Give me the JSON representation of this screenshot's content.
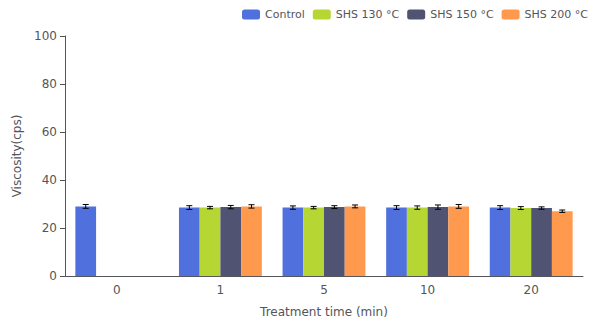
{
  "chart_data": {
    "type": "bar",
    "xlabel": "Treatment time (min)",
    "ylabel": "Viscosity(cps)",
    "categories": [
      "0",
      "1",
      "5",
      "10",
      "20"
    ],
    "series": [
      {
        "name": "Control",
        "values": [
          29.0,
          28.5,
          28.5,
          28.5,
          28.5
        ],
        "errors": [
          0.8,
          0.8,
          0.7,
          0.8,
          0.8
        ]
      },
      {
        "name": "SHS 130 °C",
        "values": [
          null,
          28.5,
          28.5,
          28.5,
          28.3
        ],
        "errors": [
          null,
          0.5,
          0.5,
          0.7,
          0.6
        ]
      },
      {
        "name": "SHS 150 °C",
        "values": [
          null,
          28.7,
          28.7,
          28.7,
          28.3
        ],
        "errors": [
          null,
          0.7,
          0.6,
          0.9,
          0.5
        ]
      },
      {
        "name": "SHS 200 °C",
        "values": [
          null,
          29.0,
          29.0,
          29.0,
          27.0
        ],
        "errors": [
          null,
          0.7,
          0.6,
          0.8,
          0.5
        ]
      }
    ],
    "ylim": [
      0,
      100
    ],
    "yticks": [
      0,
      20,
      40,
      60,
      80,
      100
    ],
    "grid": false,
    "legend": "upper right"
  }
}
